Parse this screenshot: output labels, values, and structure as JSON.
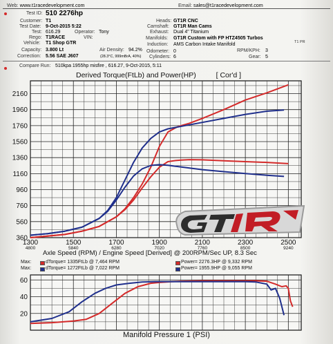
{
  "header": {
    "web_label": "Web:",
    "web_value": "www.t1racedevelopment.com",
    "email_label": "Email:",
    "email_value": "sales@t1racedevelopment.com"
  },
  "details": {
    "test_id_label": "Test ID:",
    "test_id": "510 2276hp",
    "customer_label": "Customer:",
    "customer": "T1",
    "test_date_label": "Test Date:",
    "test_date": "9-Oct-2015 5:22",
    "test_label": "Test:",
    "test": "616.29",
    "operator_label": "Operator:",
    "operator": "Tony",
    "rego_label": "Rego:",
    "rego": "T1RACE",
    "vin_label": "VIN:",
    "vin": "",
    "vehicle_label": "Vehicle:",
    "vehicle": "T1 Shop GTR",
    "capacity_label": "Capacity:",
    "capacity": "3.800 Lt",
    "air_density_label": "Air Density:",
    "air_density": "94.2%",
    "correction_label": "Correction:",
    "correction": "5.56 SAE J607",
    "air_detail": "(28.3°C, 999mBrA, 40%)",
    "heads_label": "Heads:",
    "heads": "GT1R CNC",
    "camshaft_label": "Camshaft:",
    "camshaft": "GT1R Man Cams",
    "exhaust_label": "Exhaust:",
    "exhaust": "Dual 4\" Titanium",
    "manifolds_label": "Manifolds:",
    "manifolds": "GT1R Custom with FP HTZ4505 Turbos",
    "induction_label": "Induction:",
    "induction": "AMS Carbon Intake Manifold",
    "induction_note": "T1 PR",
    "odometer_label": "Odometer:",
    "odometer": "0",
    "cylinders_label": "Cylinders:",
    "cylinders": "6",
    "rpm_kph_label": "RPM/KPH:",
    "rpm_kph": "3",
    "gear_label": "Gear:",
    "gear": "5"
  },
  "compare": {
    "label": "Compare Run:",
    "value": "510kpa 1955hp misfire , 616.27, 9-Oct-2015, 5:11"
  },
  "maxima": [
    {
      "label": "Max:",
      "torque": "dTorque= 1335FtLb @ 7,464 RPM",
      "power": "Power= 2276.3HP @ 9,332 RPM",
      "color": "#d42a2a"
    },
    {
      "label": "Max:",
      "torque": "dTorque= 1272FtLb @ 7,022 RPM",
      "power": "Power= 1955.9HP @ 9,055 RPM",
      "color": "#1f2f8c"
    }
  ],
  "colors": {
    "current": "#d42a2a",
    "compare": "#1f2f8c",
    "grid": "#222222"
  },
  "chart_data": [
    {
      "type": "line",
      "title": "Derived Torque(FtLb) and Power(HP)",
      "title_note": "[ Cor'd ]",
      "xlabel": "Axle Speed (RPM) / Engine Speed [Derived] @ 200RPM/Sec UP, 8.3 Sec",
      "x_ticks": [
        "1300",
        "1500",
        "1700",
        "1900",
        "2100",
        "2300",
        "2500"
      ],
      "x_engine_ticks": [
        "4800",
        "5840",
        "6280",
        "7020",
        "7760",
        "8500",
        "9240"
      ],
      "y_ticks": [
        "360",
        "560",
        "760",
        "960",
        "1160",
        "1360",
        "1560",
        "1760",
        "1960",
        "2160"
      ],
      "xlim": [
        1300,
        2560
      ],
      "ylim": [
        360,
        2320
      ],
      "grid": true,
      "series": [
        {
          "color": "#d42a2a",
          "x": [
            1300,
            1380,
            1460,
            1540,
            1620,
            1700,
            1740,
            1780,
            1820,
            1860,
            1900,
            1940,
            1980,
            2000,
            2040,
            2100,
            2200,
            2300,
            2400,
            2500
          ],
          "values": [
            360,
            380,
            400,
            440,
            500,
            620,
            720,
            860,
            1030,
            1240,
            1500,
            1680,
            1740,
            1760,
            1790,
            1850,
            1960,
            2080,
            2170,
            2270
          ]
        },
        {
          "color": "#d42a2a",
          "x": [
            1300,
            1380,
            1460,
            1540,
            1620,
            1700,
            1740,
            1780,
            1820,
            1860,
            1900,
            1940,
            1980,
            2000,
            2040,
            2100,
            2200,
            2300,
            2400,
            2500
          ],
          "values": [
            360,
            380,
            400,
            440,
            500,
            620,
            710,
            830,
            980,
            1120,
            1240,
            1310,
            1325,
            1330,
            1335,
            1332,
            1320,
            1310,
            1300,
            1285
          ]
        },
        {
          "color": "#1f2f8c",
          "x": [
            1300,
            1380,
            1460,
            1540,
            1620,
            1660,
            1700,
            1740,
            1780,
            1820,
            1860,
            1900,
            1940,
            1980,
            2040,
            2100,
            2200,
            2300,
            2400,
            2480
          ],
          "values": [
            390,
            410,
            440,
            490,
            600,
            700,
            860,
            1080,
            1300,
            1480,
            1600,
            1680,
            1720,
            1740,
            1770,
            1800,
            1850,
            1900,
            1940,
            1955
          ]
        },
        {
          "color": "#1f2f8c",
          "x": [
            1300,
            1380,
            1460,
            1540,
            1620,
            1660,
            1700,
            1740,
            1780,
            1820,
            1860,
            1900,
            1940,
            1980,
            2040,
            2100,
            2200,
            2300,
            2400,
            2480
          ],
          "values": [
            390,
            410,
            440,
            490,
            600,
            690,
            830,
            990,
            1130,
            1220,
            1262,
            1272,
            1265,
            1250,
            1230,
            1210,
            1185,
            1160,
            1140,
            1125
          ]
        }
      ]
    },
    {
      "type": "line",
      "xlabel": "Manifold Pressure 1 (PSI)",
      "y_ticks": [
        "20",
        "40",
        "60"
      ],
      "xlim": [
        1300,
        2560
      ],
      "ylim": [
        0,
        66
      ],
      "grid": true,
      "series": [
        {
          "color": "#d42a2a",
          "x": [
            1300,
            1400,
            1500,
            1560,
            1620,
            1680,
            1740,
            1800,
            1860,
            1900,
            1960,
            2000,
            2100,
            2200,
            2300,
            2350,
            2400,
            2440,
            2470,
            2490,
            2500,
            2510,
            2520
          ],
          "values": [
            8,
            9,
            11,
            13,
            20,
            32,
            44,
            52,
            56,
            57,
            58,
            58.5,
            59,
            59,
            59,
            59,
            58.5,
            55,
            52,
            53,
            50,
            35,
            28
          ]
        },
        {
          "color": "#1f2f8c",
          "x": [
            1300,
            1400,
            1480,
            1540,
            1600,
            1650,
            1700,
            1760,
            1820,
            1880,
            1940,
            2000,
            2100,
            2200,
            2300,
            2350,
            2400,
            2420,
            2440,
            2460,
            2480
          ],
          "values": [
            10,
            14,
            22,
            34,
            44,
            50,
            54,
            56,
            57.5,
            58,
            58,
            58,
            58,
            58,
            58,
            57.5,
            55,
            48,
            50,
            38,
            18
          ]
        }
      ]
    }
  ]
}
